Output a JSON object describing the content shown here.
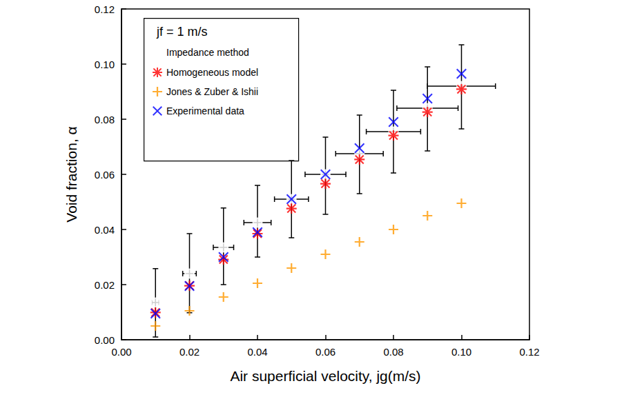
{
  "chart_data": {
    "type": "scatter",
    "x_label": "Air superficial velocity, jg(m/s)",
    "y_label": "Void fraction, α",
    "legend_title": "jf = 1 m/s",
    "legend": "upper left",
    "grid": false,
    "xlim": [
      0,
      0.12
    ],
    "xticks": [
      {
        "value": 0,
        "label": "0.00"
      },
      {
        "value": 0.02,
        "label": "0.02"
      },
      {
        "value": 0.04,
        "label": "0.04"
      },
      {
        "value": 0.06,
        "label": "0.06"
      },
      {
        "value": 0.08,
        "label": "0.08"
      },
      {
        "value": 0.1,
        "label": "0.10"
      },
      {
        "value": 0.12,
        "label": "0.12"
      }
    ],
    "ylim": [
      0,
      0.12
    ],
    "yticks": [
      {
        "value": 0,
        "label": "0.00"
      },
      {
        "value": 0.02,
        "label": "0.02"
      },
      {
        "value": 0.04,
        "label": "0.04"
      },
      {
        "value": 0.06,
        "label": "0.06"
      },
      {
        "value": 0.08,
        "label": "0.08"
      },
      {
        "value": 0.1,
        "label": "0.10"
      },
      {
        "value": 0.12,
        "label": "0.12"
      }
    ],
    "x": [
      0.01,
      0.02,
      0.03,
      0.04,
      0.05,
      0.06,
      0.07,
      0.08,
      0.09,
      0.1
    ],
    "series": [
      {
        "name": "Impedance method",
        "color": "#000000",
        "marker": "circle_open",
        "values": [
          0.0135,
          0.024,
          0.0335,
          0.0425,
          0.051,
          0.06,
          0.0675,
          0.0755,
          0.084,
          0.092
        ],
        "y_error": [
          [
            0.001,
            0.0258
          ],
          [
            0.0098,
            0.0385
          ],
          [
            0.02,
            0.0478
          ],
          [
            0.03,
            0.056
          ],
          [
            0.037,
            0.065
          ],
          [
            0.0455,
            0.0735
          ],
          [
            0.053,
            0.0815
          ],
          [
            0.0605,
            0.0905
          ],
          [
            0.0685,
            0.099
          ],
          [
            0.0765,
            0.107
          ]
        ],
        "x_error": [
          [
            0.009,
            0.011
          ],
          [
            0.018,
            0.022
          ],
          [
            0.027,
            0.033
          ],
          [
            0.036,
            0.044
          ],
          [
            0.045,
            0.055
          ],
          [
            0.054,
            0.066
          ],
          [
            0.063,
            0.077
          ],
          [
            0.072,
            0.088
          ],
          [
            0.081,
            0.099
          ],
          [
            0.09,
            0.11
          ]
        ]
      },
      {
        "name": "Homogeneous model",
        "color": "#ff0000",
        "marker": "asterisk",
        "values": [
          0.0099,
          0.0196,
          0.0291,
          0.0385,
          0.0476,
          0.0566,
          0.0654,
          0.0741,
          0.0826,
          0.0909
        ]
      },
      {
        "name": "Jones & Zuber & Ishii",
        "color": "#ff9900",
        "marker": "plus",
        "values": [
          0.005,
          0.0105,
          0.0155,
          0.0205,
          0.026,
          0.031,
          0.0355,
          0.04,
          0.045,
          0.0495
        ]
      },
      {
        "name": "Experimental data",
        "color": "#0000ff",
        "marker": "x",
        "values": [
          0.0095,
          0.0195,
          0.03,
          0.039,
          0.051,
          0.06,
          0.0695,
          0.079,
          0.0875,
          0.0965
        ]
      }
    ]
  }
}
